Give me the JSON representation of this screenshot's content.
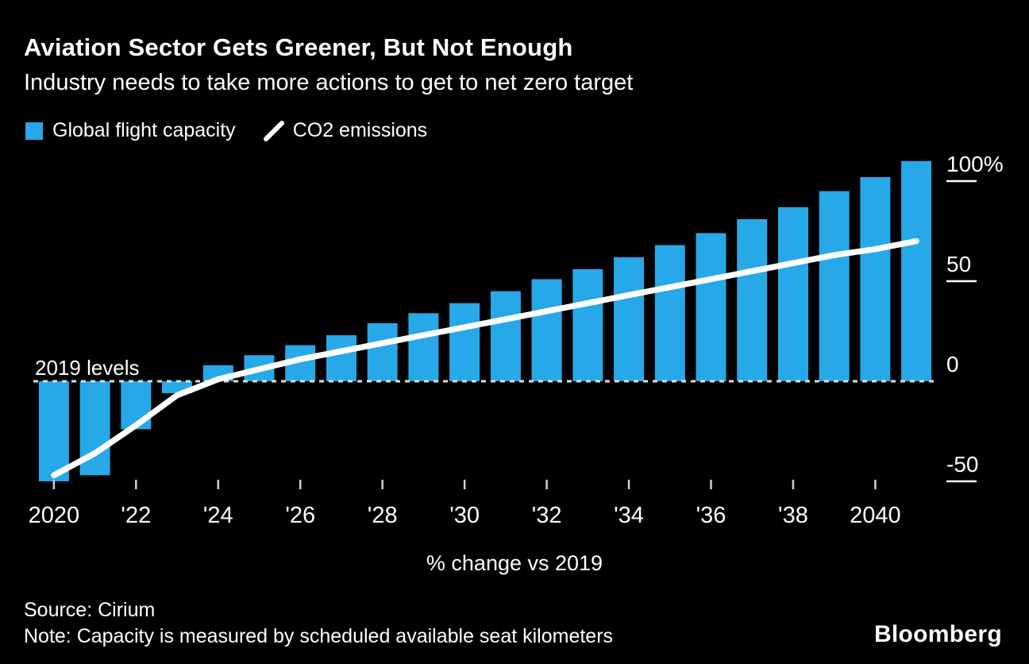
{
  "header": {
    "title": "Aviation Sector Gets Greener, But Not Enough",
    "subtitle": "Industry needs to take more actions to get to net zero target"
  },
  "legend": {
    "items": [
      {
        "label": "Global flight capacity",
        "marker": "square",
        "color": "#27a8e8"
      },
      {
        "label": "CO2 emissions",
        "marker": "line",
        "color": "#ffffff"
      }
    ]
  },
  "chart_data": {
    "type": "bar+line",
    "categories": [
      2020,
      2021,
      2022,
      2023,
      2024,
      2025,
      2026,
      2027,
      2028,
      2029,
      2030,
      2031,
      2032,
      2033,
      2034,
      2035,
      2036,
      2037,
      2038,
      2039,
      2040,
      2041
    ],
    "series": [
      {
        "name": "Global flight capacity",
        "type": "bar",
        "color": "#27a8e8",
        "values": [
          -50,
          -47,
          -24,
          -6,
          8,
          13,
          18,
          23,
          29,
          34,
          39,
          45,
          51,
          56,
          62,
          68,
          74,
          81,
          87,
          95,
          102,
          110
        ]
      },
      {
        "name": "CO2 emissions",
        "type": "line",
        "color": "#ffffff",
        "values": [
          -47,
          -36,
          -22,
          -7,
          1,
          6,
          11,
          15,
          19,
          23,
          27,
          31,
          35,
          39,
          43,
          47,
          51,
          55,
          59,
          63,
          66,
          70
        ]
      }
    ],
    "baseline": {
      "value": 0,
      "label": "2019 levels"
    },
    "y_axis": {
      "side": "right",
      "unit": "%",
      "ticks": [
        {
          "value": 100,
          "label": "100%"
        },
        {
          "value": 50,
          "label": "50"
        },
        {
          "value": 0,
          "label": "0"
        },
        {
          "value": -50,
          "label": "-50"
        }
      ]
    },
    "x_axis": {
      "title": "% change vs 2019",
      "ticks": [
        {
          "index": 0,
          "label": "2020"
        },
        {
          "index": 2,
          "label": "'22"
        },
        {
          "index": 4,
          "label": "'24"
        },
        {
          "index": 6,
          "label": "'26"
        },
        {
          "index": 8,
          "label": "'28"
        },
        {
          "index": 10,
          "label": "'30"
        },
        {
          "index": 12,
          "label": "'32"
        },
        {
          "index": 14,
          "label": "'34"
        },
        {
          "index": 16,
          "label": "'36"
        },
        {
          "index": 18,
          "label": "'38"
        },
        {
          "index": 20,
          "label": "2040"
        }
      ]
    },
    "ylim": [
      -60,
      115
    ],
    "grid": false,
    "legend_position": "top-left"
  },
  "footer": {
    "source": "Source: Cirium",
    "note": "Note: Capacity is measured by scheduled available seat kilometers",
    "brand": "Bloomberg"
  }
}
